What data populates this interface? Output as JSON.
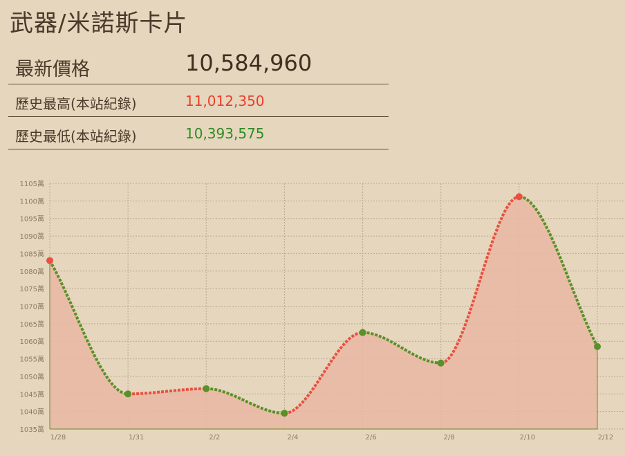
{
  "page": {
    "title": "武器/米諾斯卡片"
  },
  "prices": {
    "latest_label": "最新價格",
    "latest_value": "10,584,960",
    "high_label": "歷史最高(本站紀錄)",
    "high_value": "11,012,350",
    "low_label": "歷史最低(本站紀錄)",
    "low_value": "10,393,575"
  },
  "colors": {
    "high": "#e8402d",
    "low": "#2e8b24",
    "area_fill": "#e9b7a4",
    "up_segment": "#e85040",
    "down_segment": "#5a9028"
  },
  "chart_data": {
    "type": "area",
    "y_unit_suffix": "萬",
    "ylim": [
      1035,
      1105
    ],
    "y_ticks": [
      "1105萬",
      "1100萬",
      "1095萬",
      "1090萬",
      "1085萬",
      "1080萬",
      "1075萬",
      "1070萬",
      "1065萬",
      "1060萬",
      "1055萬",
      "1050萬",
      "1045萬",
      "1040萬",
      "1035萬"
    ],
    "x_ticks": [
      "1/28",
      "1/31",
      "2/2",
      "2/4",
      "2/6",
      "2/8",
      "2/10",
      "2/12"
    ],
    "points": [
      {
        "x": "1/28",
        "value": 1083.0,
        "marker": "high"
      },
      {
        "x": "1/31",
        "value": 1045.0,
        "marker": "low"
      },
      {
        "x": "2/2",
        "value": 1046.5,
        "marker": "low"
      },
      {
        "x": "2/4",
        "value": 1039.5,
        "marker": "low"
      },
      {
        "x": "2/6",
        "value": 1062.5,
        "marker": "low"
      },
      {
        "x": "2/8",
        "value": 1053.8,
        "marker": "low"
      },
      {
        "x": "2/10",
        "value": 1101.2,
        "marker": "high"
      },
      {
        "x": "2/12",
        "value": 1058.5,
        "marker": "low"
      }
    ],
    "grid": true,
    "legend": "none"
  }
}
